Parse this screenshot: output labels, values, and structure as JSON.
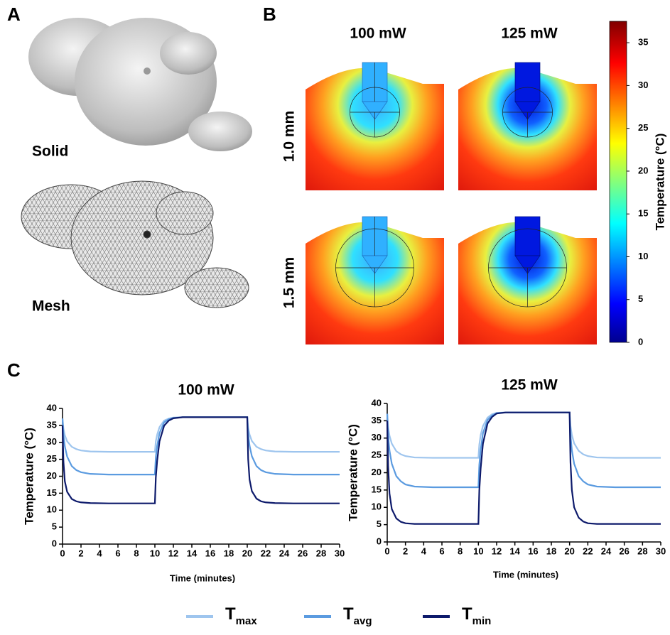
{
  "panels": {
    "a": "A",
    "b": "B",
    "c": "C"
  },
  "brain": {
    "solid": "Solid",
    "mesh": "Mesh"
  },
  "heatmaps": {
    "columns": [
      "100 mW",
      "125 mW"
    ],
    "rows": [
      "1.0 mm",
      "1.5 mm"
    ],
    "colorbar": {
      "label": "Temperature (°C)",
      "lim": [
        0,
        37.5
      ],
      "ticks": [
        0,
        5,
        10,
        15,
        20,
        25,
        30,
        35
      ]
    }
  },
  "chart_data": [
    {
      "type": "line",
      "title": "100 mW",
      "xlabel": "Time (minutes)",
      "ylabel": "Temperature (°C)",
      "x": [
        0,
        0.1,
        0.25,
        0.5,
        1,
        1.5,
        2,
        3,
        5,
        9.99,
        10,
        10.1,
        10.25,
        10.5,
        11,
        11.5,
        12,
        13,
        15,
        19.99,
        20,
        20.1,
        20.25,
        20.5,
        21,
        21.5,
        22,
        23,
        25,
        30
      ],
      "series": [
        {
          "name": "Tmax",
          "color": "#9ec5ee",
          "values": [
            37,
            34.1,
            32.1,
            30.3,
            28.7,
            28.0,
            27.6,
            27.3,
            27.2,
            27.2,
            27.2,
            30.3,
            32.3,
            34.5,
            36.4,
            37.0,
            37.3,
            37.4,
            37.4,
            37.4,
            37.4,
            34.3,
            32.3,
            30.4,
            28.7,
            28.0,
            27.6,
            27.3,
            27.2,
            27.2
          ]
        },
        {
          "name": "Tavg",
          "color": "#5b9be0",
          "values": [
            37,
            32.1,
            28.8,
            25.8,
            23.0,
            21.8,
            21.2,
            20.7,
            20.5,
            20.5,
            20.5,
            25.6,
            29.0,
            32.7,
            35.9,
            36.8,
            37.2,
            37.4,
            37.4,
            37.4,
            37.4,
            32.4,
            29.0,
            25.9,
            23.0,
            21.8,
            21.2,
            20.7,
            20.5,
            20.5
          ]
        },
        {
          "name": "Tmin",
          "color": "#0d1a6b",
          "values": [
            35,
            24.3,
            18.5,
            15.4,
            13.3,
            12.6,
            12.3,
            12.1,
            12.0,
            12.0,
            12.0,
            19.6,
            24.7,
            30.3,
            34.9,
            36.4,
            37.1,
            37.4,
            37.4,
            37.4,
            37.4,
            25,
            19,
            15.6,
            13.4,
            12.6,
            12.3,
            12.1,
            12.0,
            12.0
          ]
        }
      ],
      "xlim": [
        0,
        30
      ],
      "xticks": [
        0,
        2,
        4,
        6,
        8,
        10,
        12,
        14,
        16,
        18,
        20,
        22,
        24,
        26,
        28,
        30
      ],
      "ylim": [
        0,
        40
      ],
      "yticks": [
        0,
        5,
        10,
        15,
        20,
        25,
        30,
        35,
        40
      ]
    },
    {
      "type": "line",
      "title": "125 mW",
      "xlabel": "Time (minutes)",
      "ylabel": "Temperature (°C)",
      "x": [
        0,
        0.1,
        0.25,
        0.5,
        1,
        1.5,
        2,
        3,
        5,
        9.99,
        10,
        10.1,
        10.25,
        10.5,
        11,
        11.5,
        12,
        13,
        15,
        19.99,
        20,
        20.1,
        20.25,
        20.5,
        21,
        21.5,
        22,
        23,
        25,
        30
      ],
      "series": [
        {
          "name": "Tmax",
          "color": "#9ec5ee",
          "values": [
            37,
            33.2,
            30.7,
            28.4,
            26.2,
            25.3,
            24.8,
            24.4,
            24.3,
            24.3,
            24.3,
            28.1,
            30.9,
            33.5,
            35.9,
            36.9,
            37.3,
            37.4,
            37.4,
            37.4,
            37.4,
            33.5,
            30.9,
            28.5,
            26.3,
            25.3,
            24.8,
            24.4,
            24.3,
            24.3
          ]
        },
        {
          "name": "Tavg",
          "color": "#5b9be0",
          "values": [
            37,
            30.6,
            26.4,
            22.6,
            19.0,
            17.5,
            16.6,
            16.0,
            15.8,
            15.8,
            15.8,
            22.3,
            26.6,
            31.4,
            35.2,
            36.5,
            37.2,
            37.4,
            37.4,
            37.4,
            37.4,
            30.8,
            26.5,
            22.6,
            19.0,
            17.5,
            16.6,
            16.0,
            15.8,
            15.8
          ]
        },
        {
          "name": "Tmin",
          "color": "#0d1a6b",
          "values": [
            35,
            22,
            14,
            9.5,
            6.8,
            5.8,
            5.4,
            5.2,
            5.2,
            5.2,
            5.2,
            14.9,
            21.3,
            28.4,
            34.2,
            36.1,
            37.1,
            37.4,
            37.4,
            37.4,
            37.4,
            23,
            15,
            10,
            7,
            5.9,
            5.4,
            5.2,
            5.2,
            5.2
          ]
        }
      ],
      "xlim": [
        0,
        30
      ],
      "xticks": [
        0,
        2,
        4,
        6,
        8,
        10,
        12,
        14,
        16,
        18,
        20,
        22,
        24,
        26,
        28,
        30
      ],
      "ylim": [
        0,
        40
      ],
      "yticks": [
        0,
        5,
        10,
        15,
        20,
        25,
        30,
        35,
        40
      ]
    }
  ]
}
